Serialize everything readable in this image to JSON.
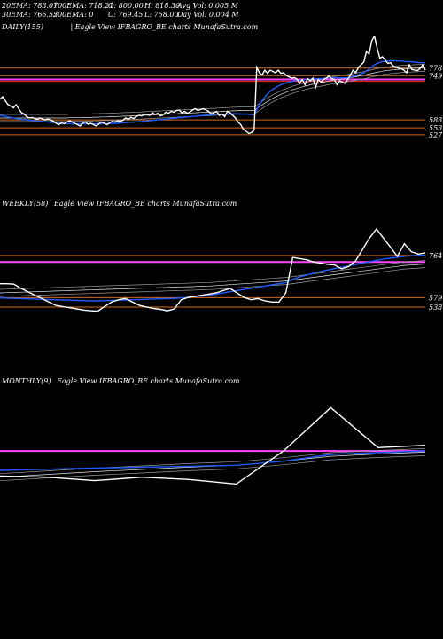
{
  "header": {
    "c1": [
      "20EMA: 783.07",
      "30EMA: 766.55"
    ],
    "c2": [
      "100EMA: 718.21",
      "200EMA: 0"
    ],
    "c3": [
      "O: 800.00",
      "C: 769.45"
    ],
    "c4": [
      "H: 818.30",
      "L: 768.00"
    ],
    "c5": [
      "Avg Vol: 0.005 M",
      "Day Vol: 0.004 M"
    ]
  },
  "colors": {
    "price": "#ffffff",
    "ema_fast": "#1e5bff",
    "ema_slow": "#e6e6e6",
    "ref_magenta": "#ff44ff",
    "ref_orange": "#d2691e",
    "ref_red": "#ff2222",
    "ref_white": "#dddddd"
  },
  "chart_data": [
    {
      "type": "line",
      "pane": "daily",
      "title": "DAILY(155)",
      "subtitle": "| Eagle  View  IFBAGRO_BE charts MunafaSutra.com",
      "ylim": [
        300,
        900
      ],
      "ticks": [
        {
          "label": "778",
          "value": 778
        },
        {
          "label": "749",
          "value": 749
        },
        {
          "label": "583",
          "value": 583
        },
        {
          "label": "553",
          "value": 553
        },
        {
          "label": "527",
          "value": 527
        }
      ],
      "hlines": [
        {
          "value": 778,
          "color": "#d2691e"
        },
        {
          "value": 749,
          "color": "#d2691e"
        },
        {
          "value": 735,
          "color": "#ff44ff"
        },
        {
          "value": 728,
          "color": "#ff2222"
        },
        {
          "value": 583,
          "color": "#d2691e"
        },
        {
          "value": 553,
          "color": "#d2691e"
        },
        {
          "value": 527,
          "color": "#d2691e"
        }
      ],
      "series": [
        {
          "role": "price",
          "values": [
            660,
            670,
            655,
            640,
            635,
            628,
            640,
            625,
            610,
            605,
            595,
            590,
            592,
            588,
            585,
            590,
            585,
            583,
            586,
            582,
            578,
            570,
            565,
            572,
            568,
            575,
            580,
            575,
            570,
            565,
            560,
            572,
            575,
            566,
            570,
            565,
            560,
            568,
            575,
            570,
            565,
            572,
            578,
            575,
            580,
            578,
            582,
            590,
            585,
            593,
            588,
            596,
            600,
            598,
            605,
            602,
            600,
            610,
            603,
            608,
            598,
            602,
            612,
            608,
            615,
            612,
            618,
            620,
            610,
            615,
            608,
            612,
            620,
            625,
            618,
            622,
            625,
            620,
            615,
            605,
            610,
            615,
            600,
            605,
            595,
            615,
            610,
            600,
            590,
            575,
            565,
            548,
            540,
            532,
            535,
            545,
            780,
            760,
            752,
            770,
            758,
            770,
            765,
            760,
            770,
            758,
            760,
            750,
            745,
            740,
            742,
            737,
            720,
            735,
            715,
            738,
            730,
            740,
            705,
            735,
            725,
            735,
            740,
            748,
            738,
            735,
            715,
            730,
            725,
            720,
            735,
            752,
            770,
            760,
            780,
            790,
            800,
            840,
            830,
            880,
            898,
            852,
            815,
            820,
            808,
            795,
            798,
            785,
            780,
            777,
            775,
            770,
            760,
            790,
            772,
            770,
            768,
            775,
            790,
            770
          ]
        },
        {
          "role": "ema_fast",
          "values": [
            600,
            598,
            596,
            594,
            592,
            590,
            588,
            586,
            585,
            584,
            583,
            582,
            581,
            580,
            579,
            578,
            577,
            576,
            575,
            574,
            573,
            572,
            571,
            570,
            570,
            569,
            569,
            568,
            568,
            568,
            568,
            568,
            568,
            568,
            568,
            568,
            568,
            568,
            568,
            568,
            569,
            569,
            570,
            570,
            571,
            571,
            572,
            573,
            573,
            574,
            575,
            575,
            576,
            577,
            578,
            579,
            580,
            581,
            582,
            583,
            584,
            585,
            586,
            587,
            588,
            589,
            590,
            591,
            592,
            593,
            594,
            595,
            596,
            597,
            598,
            599,
            600,
            601,
            602,
            602,
            603,
            603,
            604,
            604,
            604,
            605,
            605,
            606,
            606,
            606,
            605,
            605,
            605,
            604,
            603,
            602,
            620,
            640,
            655,
            668,
            680,
            690,
            698,
            704,
            710,
            715,
            719,
            722,
            725,
            727,
            729,
            731,
            732,
            733,
            734,
            735,
            736,
            737,
            737,
            738,
            738,
            739,
            740,
            741,
            741,
            742,
            741,
            741,
            741,
            741,
            742,
            744,
            746,
            748,
            752,
            756,
            760,
            768,
            774,
            782,
            790,
            795,
            799,
            802,
            803,
            804,
            805,
            805,
            805,
            804,
            804,
            803,
            802,
            802,
            801,
            800,
            799,
            798,
            798,
            797
          ]
        },
        {
          "role": "ema_slow",
          "values": [
            590,
            590,
            590,
            590,
            590,
            590,
            590,
            590,
            590,
            590,
            590,
            590,
            590,
            590,
            590,
            590,
            590,
            590,
            590,
            590,
            590,
            590,
            590,
            590,
            590,
            590,
            591,
            591,
            591,
            591,
            591,
            592,
            592,
            592,
            592,
            593,
            593,
            593,
            594,
            594,
            594,
            595,
            595,
            595,
            596,
            596,
            597,
            597,
            597,
            598,
            598,
            599,
            599,
            600,
            600,
            601,
            601,
            602,
            602,
            603,
            603,
            604,
            604,
            605,
            605,
            606,
            606,
            607,
            607,
            608,
            608,
            609,
            609,
            610,
            610,
            611,
            611,
            612,
            612,
            613,
            613,
            614,
            614,
            615,
            615,
            616,
            616,
            617,
            617,
            618,
            618,
            618,
            618,
            618,
            618,
            618,
            625,
            632,
            639,
            646,
            652,
            658,
            664,
            669,
            674,
            679,
            683,
            687,
            691,
            695,
            698,
            701,
            704,
            707,
            710,
            712,
            715,
            717,
            719,
            721,
            723,
            725,
            727,
            729,
            731,
            733,
            734,
            736,
            737,
            739,
            740,
            742,
            743,
            745,
            747,
            749,
            751,
            753,
            755,
            758,
            760,
            762,
            764,
            766,
            768,
            769,
            770,
            771,
            772,
            773,
            774,
            775,
            775,
            776,
            776,
            777,
            777,
            778,
            778,
            778
          ]
        }
      ]
    },
    {
      "type": "line",
      "pane": "weekly",
      "title": "WEEKLY(58)",
      "subtitle": "Eagle  View  IFBAGRO_BE charts MunafaSutra.com",
      "ylim": [
        250,
        950
      ],
      "ticks": [
        {
          "label": "764",
          "value": 764
        },
        {
          "label": "579",
          "value": 579
        },
        {
          "label": "538",
          "value": 538
        }
      ],
      "hlines": [
        {
          "value": 764,
          "color": "#d2691e"
        },
        {
          "value": 735,
          "color": "#ff44ff"
        },
        {
          "value": 579,
          "color": "#d2691e"
        },
        {
          "value": 538,
          "color": "#d2691e"
        }
      ],
      "series": [
        {
          "role": "price",
          "values": [
            640,
            640,
            638,
            620,
            605,
            590,
            575,
            560,
            545,
            540,
            535,
            530,
            525,
            522,
            520,
            540,
            560,
            570,
            575,
            560,
            545,
            538,
            532,
            528,
            522,
            530,
            570,
            580,
            585,
            590,
            595,
            600,
            610,
            620,
            600,
            580,
            570,
            575,
            565,
            560,
            560,
            600,
            755,
            750,
            745,
            735,
            730,
            725,
            722,
            705,
            715,
            740,
            790,
            840,
            880,
            840,
            800,
            760,
            815,
            780,
            770,
            775
          ]
        },
        {
          "role": "ema_fast",
          "values": [
            578,
            577,
            576,
            575,
            574,
            573,
            572,
            571,
            570,
            569,
            568,
            567,
            566,
            565,
            565,
            566,
            567,
            568,
            569,
            570,
            571,
            572,
            573,
            574,
            575,
            576,
            578,
            580,
            583,
            586,
            590,
            595,
            600,
            605,
            610,
            615,
            620,
            625,
            630,
            635,
            640,
            645,
            660,
            670,
            678,
            686,
            694,
            700,
            706,
            712,
            718,
            724,
            730,
            736,
            742,
            748,
            752,
            756,
            760,
            762,
            764,
            765
          ]
        },
        {
          "role": "ema_slow",
          "values": [
            600,
            601,
            602,
            603,
            604,
            605,
            606,
            607,
            608,
            609,
            610,
            611,
            612,
            613,
            614,
            615,
            616,
            617,
            618,
            619,
            620,
            621,
            622,
            623,
            624,
            625,
            626,
            627,
            628,
            629,
            630,
            632,
            634,
            636,
            638,
            640,
            642,
            644,
            646,
            648,
            650,
            652,
            656,
            660,
            664,
            668,
            672,
            676,
            680,
            684,
            688,
            692,
            696,
            700,
            704,
            708,
            712,
            716,
            720,
            722,
            724,
            726
          ]
        }
      ]
    },
    {
      "type": "line",
      "pane": "monthly",
      "title": "MONTHLY(9)",
      "subtitle": "Eagle  View  IFBAGRO_BE charts MunafaSutra.com",
      "ylim": [
        300,
        1000
      ],
      "ticks": [],
      "hlines": [
        {
          "value": 735,
          "color": "#ff44ff"
        }
      ],
      "series": [
        {
          "role": "price",
          "values": [
            625,
            620,
            605,
            620,
            610,
            590,
            735,
            925,
            750,
            760
          ]
        },
        {
          "role": "ema_fast",
          "values": [
            650,
            655,
            660,
            664,
            668,
            672,
            690,
            720,
            728,
            735
          ]
        },
        {
          "role": "ema_slow",
          "values": [
            620,
            632,
            644,
            654,
            664,
            672,
            690,
            712,
            722,
            730
          ]
        }
      ]
    }
  ]
}
